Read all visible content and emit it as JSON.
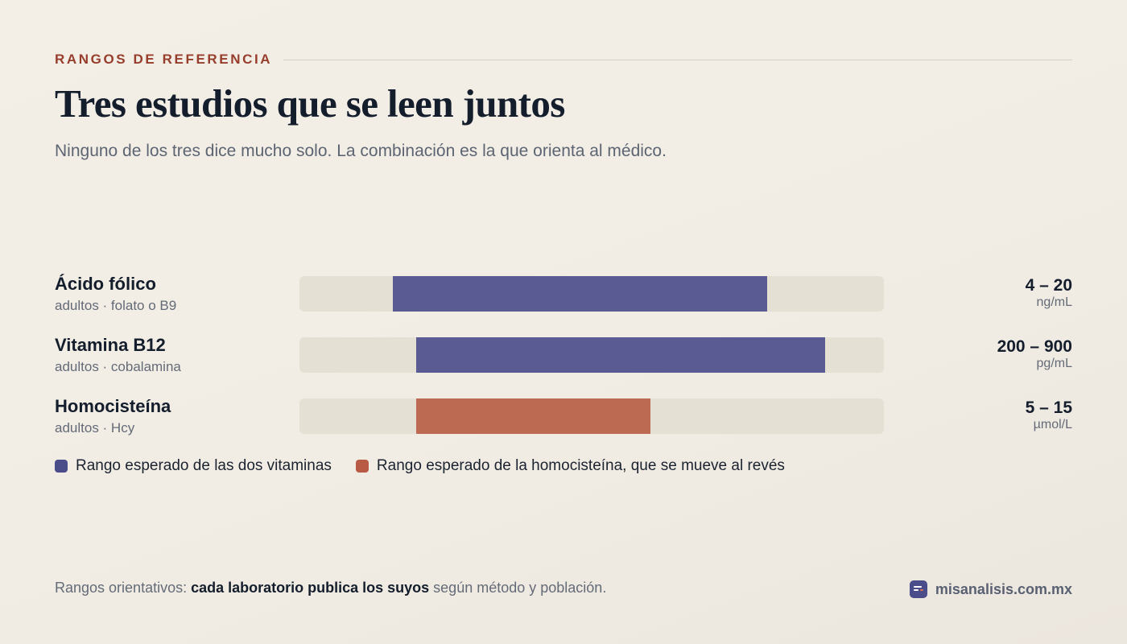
{
  "header": {
    "eyebrow": "RANGOS DE REFERENCIA",
    "title": "Tres estudios que se leen juntos",
    "subtitle": "Ninguno de los tres dice mucho solo. La combinación es la que orienta al médico."
  },
  "chart_data": {
    "type": "bar",
    "orientation": "horizontal-range",
    "rows": [
      {
        "name": "Ácido fólico",
        "sub": "adultos · folato o B9",
        "value_label": "4 – 20",
        "unit": "ng/mL",
        "low": 4,
        "high": 20,
        "scale": [
          0,
          25
        ],
        "series": "vitaminas"
      },
      {
        "name": "Vitamina B12",
        "sub": "adultos · cobalamina",
        "value_label": "200 – 900",
        "unit": "pg/mL",
        "low": 200,
        "high": 900,
        "scale": [
          0,
          1000
        ],
        "series": "homocisteina_no"
      },
      {
        "name": "Homocisteína",
        "sub": "adultos · Hcy",
        "value_label": "5 – 15",
        "unit": "µmol/L",
        "low": 5,
        "high": 15,
        "scale": [
          0,
          25
        ],
        "series": "homocisteina"
      }
    ],
    "legend": [
      {
        "label": "Rango esperado de las dos vitaminas",
        "color": "#4a4d8a"
      },
      {
        "label": "Rango esperado de la homocisteína, que se mueve al revés",
        "color": "#b85a44"
      }
    ],
    "colors": {
      "vitaminas": "#5b5b93",
      "homocisteina": "#bd6a52",
      "track": "#e5e0d4"
    }
  },
  "footer": {
    "note_prefix": "Rangos orientativos: ",
    "note_bold": "cada laboratorio publica los suyos",
    "note_suffix": " según método y población.",
    "brand": "misanalisis.com.mx"
  }
}
